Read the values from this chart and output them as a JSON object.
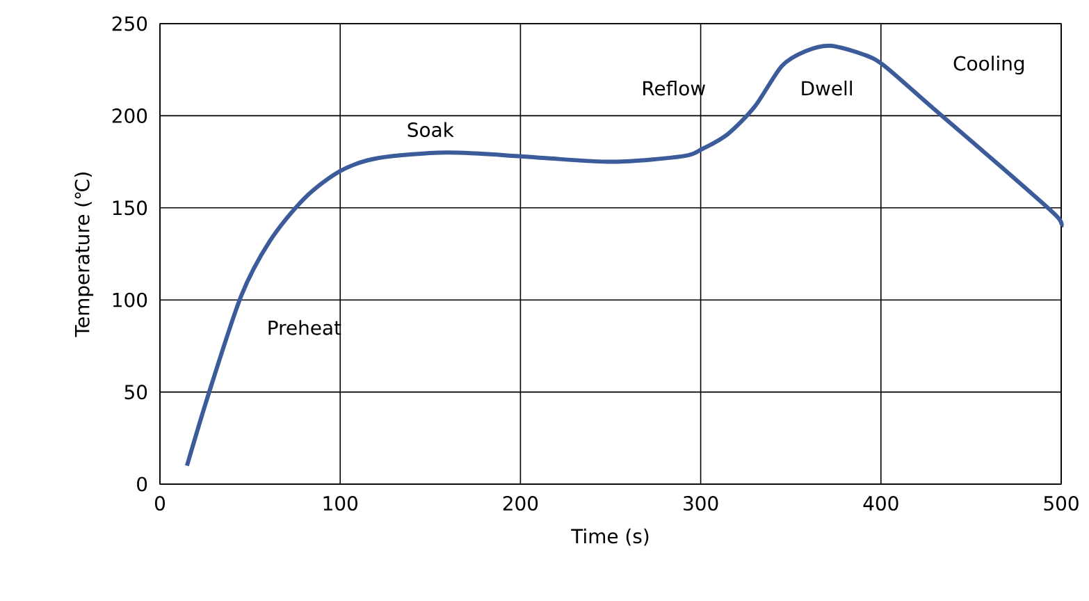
{
  "chart_data": {
    "type": "line",
    "xlabel": "Time (s)",
    "ylabel": "Temperature (℃)",
    "xlim": [
      0,
      500
    ],
    "xticks": [
      0,
      100,
      200,
      300,
      400,
      500
    ],
    "ylim": [
      0,
      250
    ],
    "yticks": [
      0,
      50,
      100,
      150,
      200,
      250
    ],
    "grid": true,
    "marker": "none",
    "line_style": "solid",
    "x": [
      15,
      27,
      45,
      61,
      80,
      100,
      121,
      159,
      200,
      214,
      252,
      290,
      301,
      315,
      330,
      345,
      358,
      372,
      391,
      402,
      429,
      467,
      497,
      500
    ],
    "series": [
      {
        "color": "#3b5b9b",
        "values": [
          10,
          49,
          102,
          132,
          155,
          170,
          177,
          180,
          178,
          177,
          175,
          178,
          182,
          190,
          205,
          227,
          235,
          238,
          233,
          227,
          204,
          172,
          146,
          140
        ]
      }
    ],
    "annotations": [
      "Preheat",
      "Soak",
      "Reflow",
      "Dwell",
      "Cooling"
    ]
  }
}
